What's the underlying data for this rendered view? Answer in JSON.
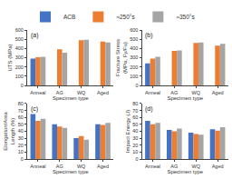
{
  "chart_data": [
    {
      "type": "bar",
      "title": "(a)",
      "xlabel": "Specimen type",
      "ylabel": "UTS (MPa)",
      "categories": [
        "Anneal",
        "AG",
        "WQ",
        "Aged"
      ],
      "series": [
        {
          "name": "ACB",
          "color": "#4472C4",
          "values": [
            290,
            0,
            0,
            0
          ]
        },
        {
          "name": "≈250°s",
          "color": "#ED7D31",
          "values": [
            305,
            390,
            490,
            475
          ]
        },
        {
          "name": "≈350°s",
          "color": "#A5A5A5",
          "values": [
            310,
            355,
            495,
            465
          ]
        }
      ],
      "ylim": [
        0,
        600
      ],
      "yticks": [
        0,
        100,
        200,
        300,
        400,
        500,
        600
      ],
      "grid": false,
      "legend": "upper left"
    },
    {
      "type": "bar",
      "title": "(b)",
      "xlabel": "Specimen type",
      "ylabel": "Fracture Stress (MPa, Fy/Fu)",
      "categories": [
        "Anneal",
        "AG",
        "WQ",
        "Aged"
      ],
      "series": [
        {
          "name": "ACB",
          "color": "#4472C4",
          "values": [
            240,
            0,
            0,
            0
          ]
        },
        {
          "name": "≈250°s",
          "color": "#ED7D31",
          "values": [
            290,
            375,
            460,
            430
          ]
        },
        {
          "name": "≈350°s",
          "color": "#A5A5A5",
          "values": [
            310,
            380,
            465,
            450
          ]
        }
      ],
      "ylim": [
        0,
        600
      ],
      "yticks": [
        0,
        100,
        200,
        300,
        400,
        500,
        600
      ],
      "grid": false,
      "legend": "upper left"
    },
    {
      "type": "bar",
      "title": "(c)",
      "xlabel": "Specimen type",
      "ylabel": "Elongation/Area Length (%)",
      "categories": [
        "Anneal",
        "AG",
        "WQ",
        "Aged"
      ],
      "series": [
        {
          "name": "ACB",
          "color": "#4472C4",
          "values": [
            65,
            50,
            30,
            50
          ]
        },
        {
          "name": "≈250°s",
          "color": "#ED7D31",
          "values": [
            55,
            47,
            33,
            49
          ]
        },
        {
          "name": "≈350°s",
          "color": "#A5A5A5",
          "values": [
            58,
            45,
            28,
            52
          ]
        }
      ],
      "ylim": [
        0,
        80
      ],
      "yticks": [
        0,
        10,
        20,
        30,
        40,
        50,
        60,
        70,
        80
      ],
      "grid": false,
      "legend": "upper left"
    },
    {
      "type": "bar",
      "title": "(d)",
      "xlabel": "Specimen type",
      "ylabel": "Impact Energy (J)",
      "categories": [
        "Anneal",
        "AG",
        "WQ",
        "Aged"
      ],
      "series": [
        {
          "name": "ACB",
          "color": "#4472C4",
          "values": [
            55,
            42,
            38,
            43
          ]
        },
        {
          "name": "≈250°s",
          "color": "#ED7D31",
          "values": [
            50,
            40,
            36,
            41
          ]
        },
        {
          "name": "≈350°s",
          "color": "#A5A5A5",
          "values": [
            52,
            44,
            35,
            46
          ]
        }
      ],
      "ylim": [
        0,
        80
      ],
      "yticks": [
        0,
        10,
        20,
        30,
        40,
        50,
        60,
        70,
        80
      ],
      "grid": false,
      "legend": "upper left"
    }
  ]
}
